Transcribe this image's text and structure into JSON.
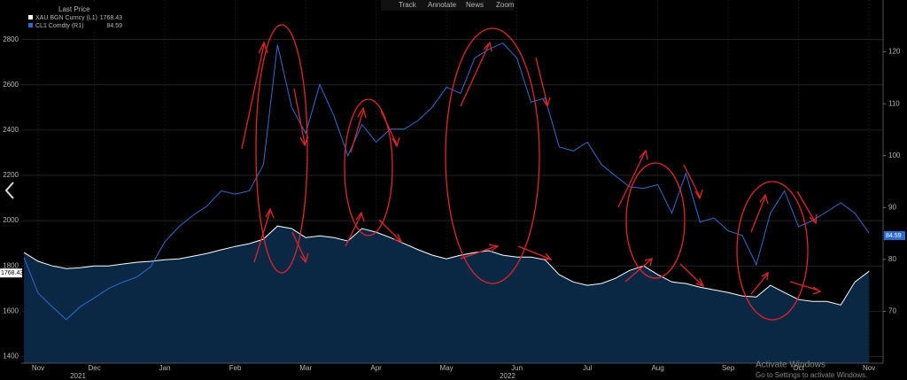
{
  "chart_data": {
    "type": "line",
    "legend_title": "Last Price",
    "toolbar": [
      "Track",
      "Annotate",
      "News",
      "Zoom"
    ],
    "watermark": [
      "Activate Windows",
      "Go to Settings to activate Windows."
    ],
    "categories": [
      null,
      "Nov",
      null,
      null,
      null,
      "Dec",
      null,
      null,
      null,
      null,
      "Jan",
      null,
      null,
      null,
      null,
      "Feb",
      null,
      null,
      null,
      null,
      "Mar",
      null,
      null,
      null,
      null,
      "Apr",
      null,
      null,
      null,
      null,
      "May",
      null,
      null,
      null,
      null,
      "Jun",
      null,
      null,
      null,
      null,
      "Jul",
      null,
      null,
      null,
      null,
      "Aug",
      null,
      null,
      null,
      null,
      "Sep",
      null,
      null,
      null,
      null,
      "Oct",
      null,
      null,
      null,
      null,
      "Nov"
    ],
    "year_labels": [
      "2021",
      "2022"
    ],
    "series": [
      {
        "name": "XAU BGN Curncy (L1)",
        "color": "#ffffff",
        "fill": "#0a2744",
        "area": true,
        "last": 1768.43,
        "values": [
          1859,
          1820,
          1800,
          1788,
          1792,
          1800,
          1800,
          1808,
          1816,
          1820,
          1827,
          1831,
          1843,
          1855,
          1871,
          1886,
          1898,
          1918,
          1976,
          1965,
          1925,
          1933,
          1925,
          1910,
          1965,
          1949,
          1925,
          1898,
          1871,
          1847,
          1831,
          1847,
          1859,
          1867,
          1847,
          1839,
          1839,
          1827,
          1761,
          1729,
          1714,
          1722,
          1745,
          1780,
          1800,
          1761,
          1729,
          1722,
          1706,
          1694,
          1682,
          1667,
          1663,
          1714,
          1682,
          1651,
          1643,
          1643,
          1627,
          1729,
          1776
        ]
      },
      {
        "name": "CL1 Comdty (R1)",
        "color": "#2d6cd2",
        "axis": "y2",
        "last": 84.59,
        "values": [
          80.3,
          73.5,
          70.9,
          68.4,
          70.9,
          72.6,
          74.4,
          75.6,
          76.6,
          78.6,
          83.4,
          86.3,
          88.5,
          90.3,
          93.2,
          92.6,
          93.2,
          98.3,
          121.4,
          109.4,
          104.3,
          113.7,
          107.7,
          100.0,
          106.0,
          102.6,
          105.1,
          105.1,
          106.8,
          109.4,
          113.2,
          112.0,
          118.8,
          120.5,
          121.7,
          118.8,
          110.3,
          111.1,
          101.7,
          100.9,
          102.6,
          98.3,
          96.1,
          94.0,
          93.7,
          94.4,
          88.9,
          96.6,
          87.2,
          88.0,
          85.5,
          84.6,
          79.0,
          88.9,
          93.2,
          86.3,
          87.5,
          89.2,
          90.9,
          88.9,
          85.1
        ]
      }
    ],
    "ylim": [
      1370,
      2975
    ],
    "yticks": [
      1400,
      1600,
      1800,
      2000,
      2200,
      2400,
      2600,
      2800
    ],
    "y2lim": [
      60,
      130
    ],
    "y2ticks": [
      70,
      80,
      90,
      100,
      110,
      120
    ],
    "grid": true
  }
}
